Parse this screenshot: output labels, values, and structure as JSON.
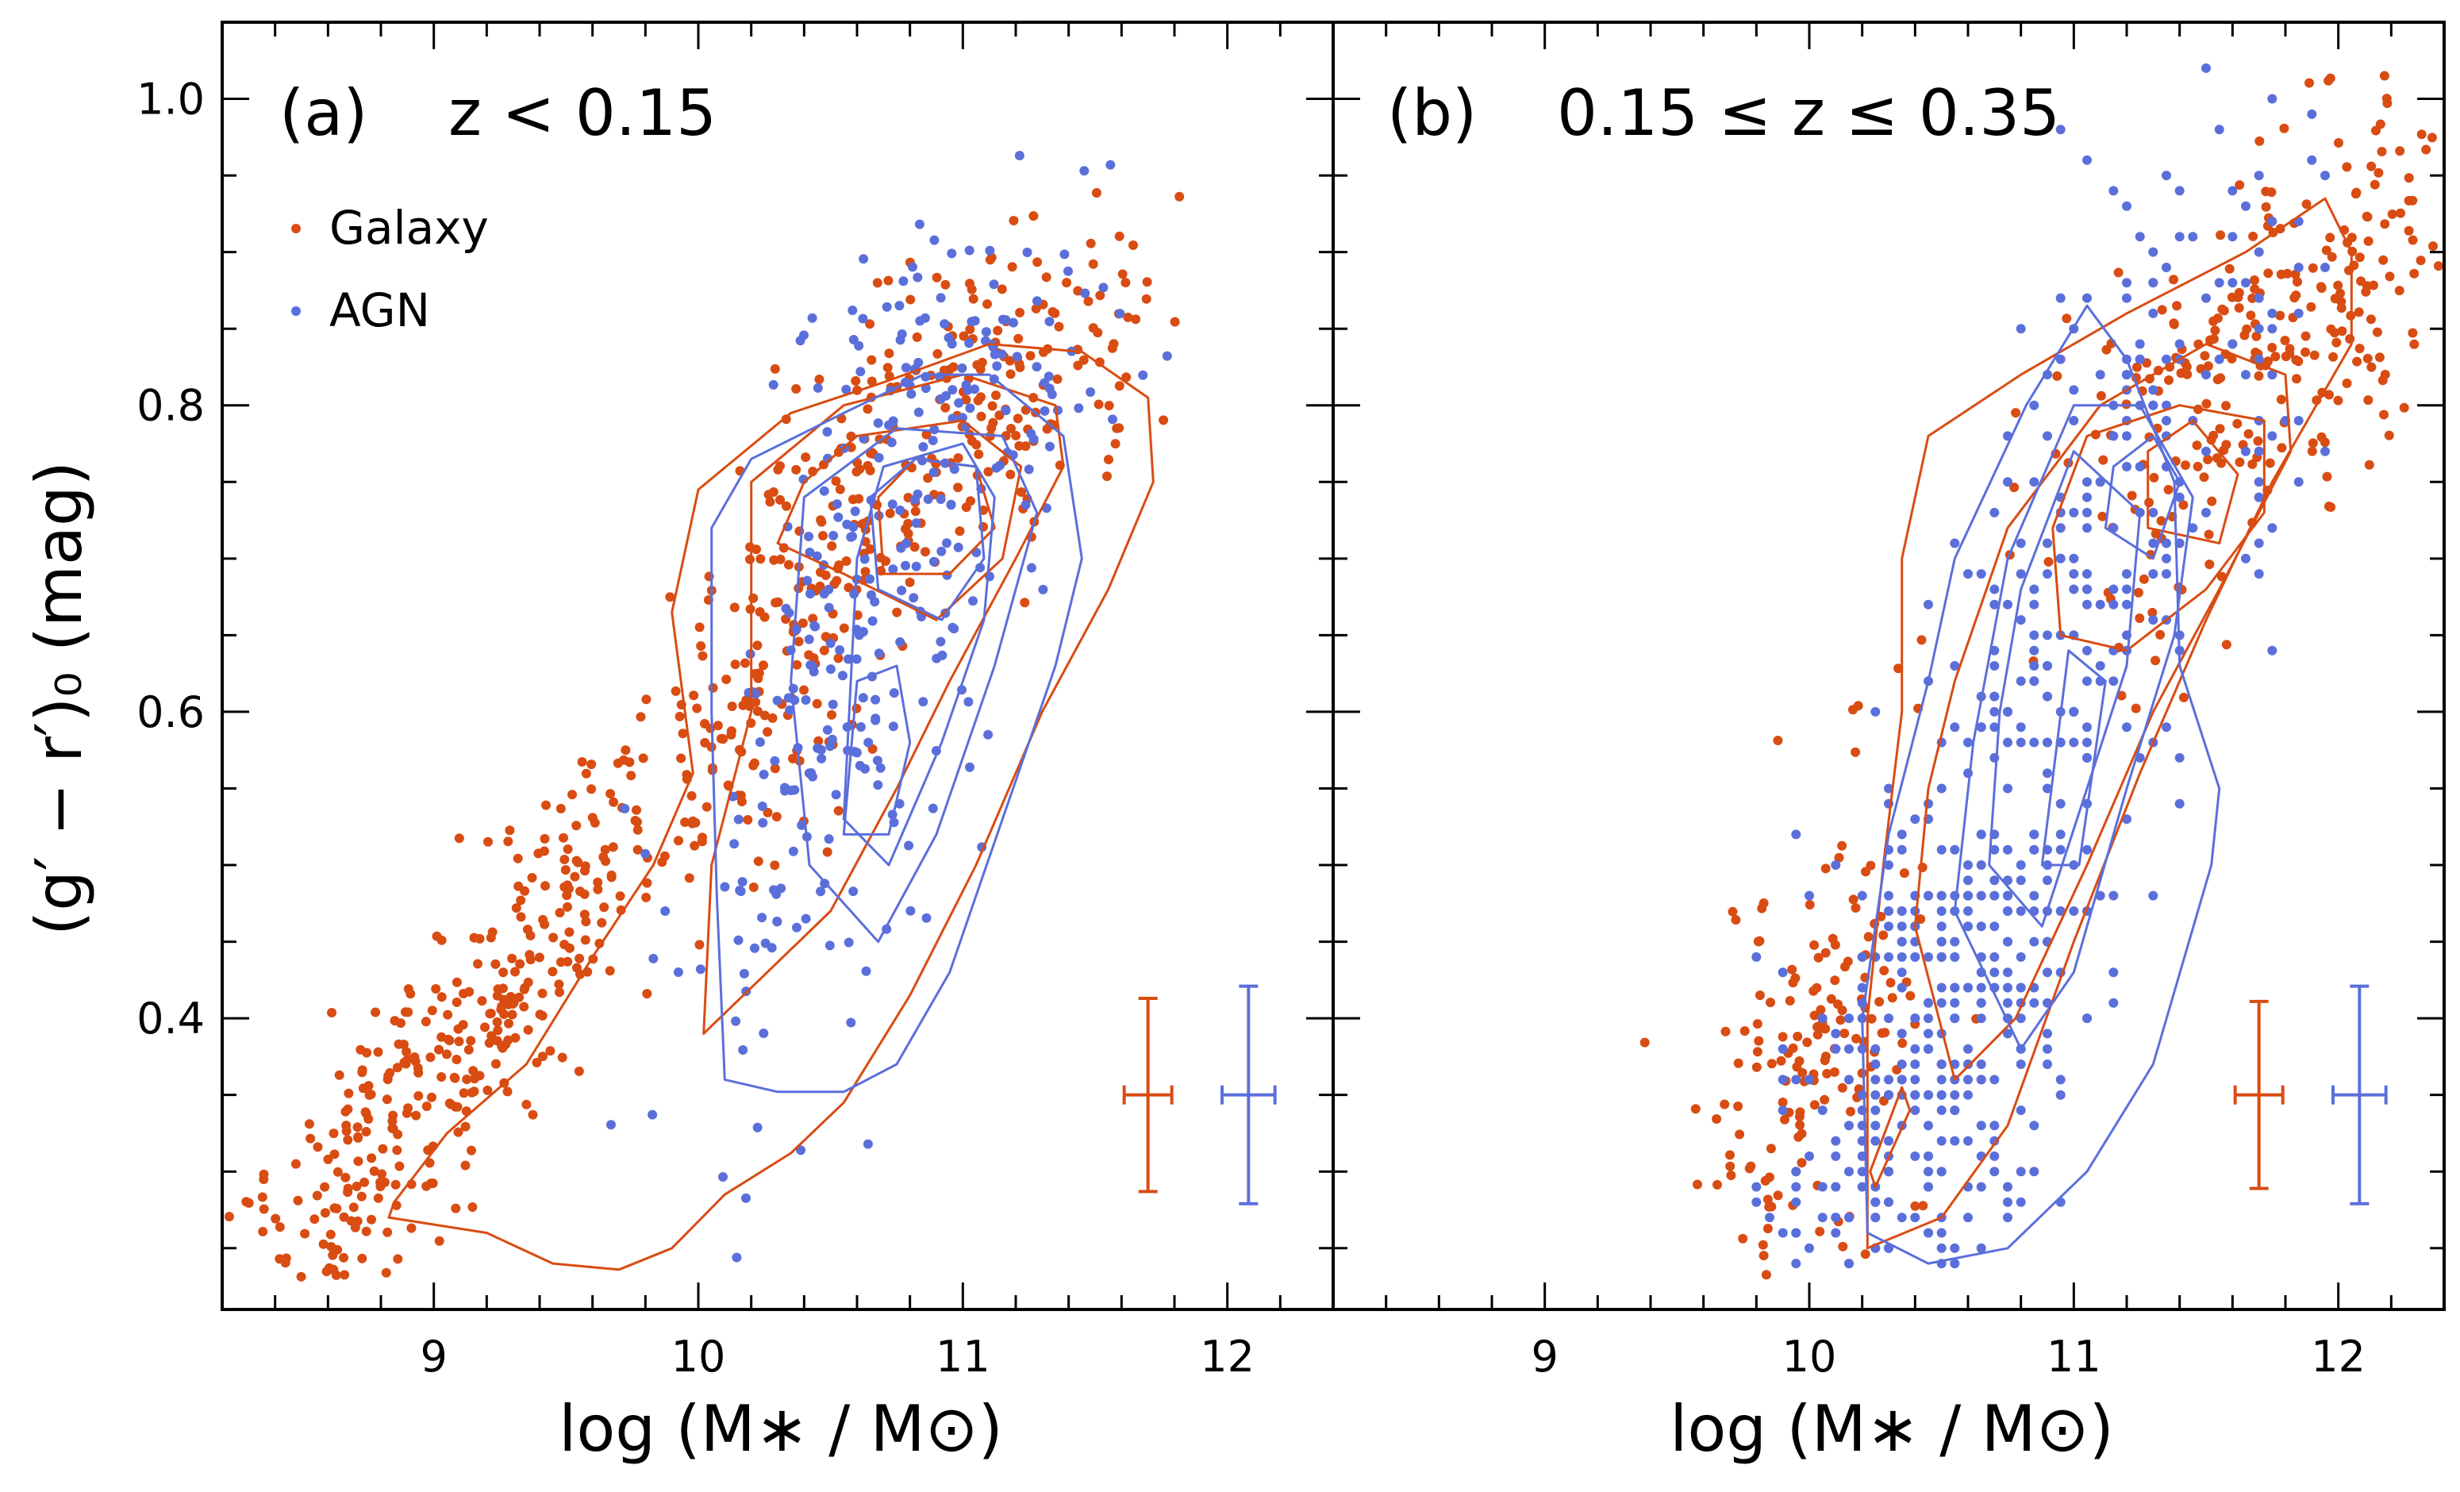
{
  "chart_data": [
    {
      "type": "scatter",
      "panel_label": "(a)",
      "title_math": "z < 0.15",
      "xlabel": "log (M∗ / M⊙)",
      "ylabel": "(g′ − r′)₀ (mag)",
      "xlim": [
        8.2,
        12.4
      ],
      "ylim": [
        0.21,
        1.05
      ],
      "xticks": [
        "9",
        "10",
        "11",
        "12"
      ],
      "yticks": [
        "0.4",
        "0.6",
        "0.8",
        "1.0"
      ],
      "legend": {
        "position": "top-left",
        "entries": [
          "Galaxy",
          "AGN"
        ]
      },
      "colors": {
        "galaxy": "#d94c12",
        "agn": "#5b6fdb"
      },
      "error_bars": [
        {
          "series": "Galaxy",
          "x": 11.7,
          "y": 0.35,
          "xerr": 0.09,
          "yerr": 0.063
        },
        {
          "series": "AGN",
          "x": 12.08,
          "y": 0.35,
          "xerr": 0.1,
          "yerr": 0.071
        }
      ],
      "contours": {
        "galaxy": [
          [
            [
              9.7,
              0.236
            ],
            [
              9.9,
              0.25
            ],
            [
              10.1,
              0.285
            ],
            [
              10.35,
              0.312
            ],
            [
              10.55,
              0.345
            ],
            [
              10.8,
              0.415
            ],
            [
              11.05,
              0.5
            ],
            [
              11.3,
              0.6
            ],
            [
              11.55,
              0.68
            ],
            [
              11.72,
              0.75
            ],
            [
              11.7,
              0.805
            ],
            [
              11.45,
              0.835
            ],
            [
              11.1,
              0.84
            ],
            [
              10.7,
              0.815
            ],
            [
              10.35,
              0.795
            ],
            [
              10.0,
              0.745
            ],
            [
              9.9,
              0.665
            ],
            [
              9.98,
              0.56
            ],
            [
              9.83,
              0.5
            ],
            [
              9.6,
              0.44
            ],
            [
              9.35,
              0.37
            ],
            [
              9.05,
              0.325
            ],
            [
              8.85,
              0.28
            ],
            [
              8.83,
              0.27
            ],
            [
              9.2,
              0.26
            ],
            [
              9.45,
              0.24
            ],
            [
              9.7,
              0.236
            ]
          ],
          [
            [
              10.02,
              0.39
            ],
            [
              10.5,
              0.47
            ],
            [
              10.75,
              0.55
            ],
            [
              10.95,
              0.62
            ],
            [
              11.2,
              0.7
            ],
            [
              11.38,
              0.76
            ],
            [
              11.35,
              0.8
            ],
            [
              11.0,
              0.82
            ],
            [
              10.55,
              0.8
            ],
            [
              10.2,
              0.75
            ],
            [
              10.2,
              0.6
            ],
            [
              10.05,
              0.5
            ],
            [
              10.02,
              0.39
            ]
          ],
          [
            [
              10.3,
              0.71
            ],
            [
              10.55,
              0.69
            ],
            [
              10.9,
              0.66
            ],
            [
              11.15,
              0.7
            ],
            [
              11.22,
              0.76
            ],
            [
              11.0,
              0.79
            ],
            [
              10.6,
              0.78
            ],
            [
              10.4,
              0.75
            ],
            [
              10.3,
              0.71
            ]
          ],
          [
            [
              10.7,
              0.69
            ],
            [
              10.95,
              0.69
            ],
            [
              11.12,
              0.72
            ],
            [
              11.05,
              0.76
            ],
            [
              10.82,
              0.765
            ],
            [
              10.68,
              0.74
            ],
            [
              10.7,
              0.69
            ]
          ]
        ],
        "agn": [
          [
            [
              10.1,
              0.36
            ],
            [
              10.3,
              0.352
            ],
            [
              10.55,
              0.352
            ],
            [
              10.75,
              0.37
            ],
            [
              10.95,
              0.43
            ],
            [
              11.15,
              0.53
            ],
            [
              11.35,
              0.63
            ],
            [
              11.45,
              0.7
            ],
            [
              11.38,
              0.78
            ],
            [
              11.1,
              0.82
            ],
            [
              10.85,
              0.82
            ],
            [
              10.55,
              0.795
            ],
            [
              10.2,
              0.765
            ],
            [
              10.05,
              0.72
            ],
            [
              10.05,
              0.6
            ],
            [
              10.07,
              0.48
            ],
            [
              10.1,
              0.36
            ]
          ],
          [
            [
              10.42,
              0.5
            ],
            [
              10.68,
              0.45
            ],
            [
              10.9,
              0.52
            ],
            [
              11.12,
              0.63
            ],
            [
              11.28,
              0.73
            ],
            [
              11.15,
              0.78
            ],
            [
              10.75,
              0.785
            ],
            [
              10.4,
              0.74
            ],
            [
              10.35,
              0.62
            ],
            [
              10.42,
              0.5
            ]
          ],
          [
            [
              10.55,
              0.53
            ],
            [
              10.72,
              0.5
            ],
            [
              10.92,
              0.58
            ],
            [
              11.08,
              0.66
            ],
            [
              11.12,
              0.74
            ],
            [
              11.0,
              0.775
            ],
            [
              10.7,
              0.76
            ],
            [
              10.6,
              0.7
            ],
            [
              10.55,
              0.53
            ]
          ],
          [
            [
              10.55,
              0.52
            ],
            [
              10.72,
              0.52
            ],
            [
              10.8,
              0.58
            ],
            [
              10.75,
              0.63
            ],
            [
              10.6,
              0.62
            ],
            [
              10.55,
              0.52
            ]
          ],
          [
            [
              10.68,
              0.68
            ],
            [
              10.92,
              0.66
            ],
            [
              11.08,
              0.7
            ],
            [
              11.05,
              0.76
            ],
            [
              10.82,
              0.765
            ],
            [
              10.65,
              0.74
            ],
            [
              10.68,
              0.68
            ]
          ]
        ]
      }
    },
    {
      "type": "scatter",
      "panel_label": "(b)",
      "title_math": "0.15 ≤ z ≤ 0.35",
      "xlabel": "log (M∗ / M⊙)",
      "xlim": [
        8.2,
        12.4
      ],
      "ylim": [
        0.21,
        1.05
      ],
      "xticks": [
        "9",
        "10",
        "11",
        "12"
      ],
      "colors": {
        "galaxy": "#d94c12",
        "agn": "#5b6fdb"
      },
      "error_bars": [
        {
          "series": "Galaxy",
          "x": 11.7,
          "y": 0.35,
          "xerr": 0.09,
          "yerr": 0.061
        },
        {
          "series": "AGN",
          "x": 12.08,
          "y": 0.35,
          "xerr": 0.1,
          "yerr": 0.071
        }
      ],
      "contours": {
        "galaxy": [
          [
            [
              10.22,
              0.25
            ],
            [
              10.5,
              0.27
            ],
            [
              10.75,
              0.33
            ],
            [
              11.0,
              0.45
            ],
            [
              11.25,
              0.56
            ],
            [
              11.5,
              0.66
            ],
            [
              11.75,
              0.75
            ],
            [
              12.05,
              0.84
            ],
            [
              12.05,
              0.9
            ],
            [
              11.95,
              0.935
            ],
            [
              11.65,
              0.9
            ],
            [
              11.2,
              0.86
            ],
            [
              10.8,
              0.82
            ],
            [
              10.45,
              0.78
            ],
            [
              10.35,
              0.7
            ],
            [
              10.35,
              0.6
            ],
            [
              10.28,
              0.5
            ],
            [
              10.22,
              0.4
            ],
            [
              10.22,
              0.25
            ]
          ],
          [
            [
              10.4,
              0.46
            ],
            [
              10.55,
              0.36
            ],
            [
              10.78,
              0.4
            ],
            [
              11.05,
              0.5
            ],
            [
              11.3,
              0.6
            ],
            [
              11.55,
              0.68
            ],
            [
              11.82,
              0.77
            ],
            [
              11.8,
              0.82
            ],
            [
              11.5,
              0.84
            ],
            [
              11.1,
              0.8
            ],
            [
              10.75,
              0.72
            ],
            [
              10.55,
              0.62
            ],
            [
              10.45,
              0.55
            ],
            [
              10.4,
              0.46
            ]
          ],
          [
            [
              10.95,
              0.65
            ],
            [
              11.2,
              0.64
            ],
            [
              11.5,
              0.68
            ],
            [
              11.72,
              0.73
            ],
            [
              11.72,
              0.79
            ],
            [
              11.4,
              0.8
            ],
            [
              11.05,
              0.78
            ],
            [
              10.92,
              0.72
            ],
            [
              10.95,
              0.65
            ]
          ],
          [
            [
              11.28,
              0.72
            ],
            [
              11.55,
              0.71
            ],
            [
              11.62,
              0.755
            ],
            [
              11.45,
              0.79
            ],
            [
              11.28,
              0.77
            ],
            [
              11.28,
              0.72
            ]
          ],
          [
            [
              10.23,
              0.3
            ],
            [
              10.35,
              0.355
            ],
            [
              10.38,
              0.34
            ],
            [
              10.25,
              0.29
            ],
            [
              10.23,
              0.3
            ]
          ]
        ],
        "agn": [
          [
            [
              10.22,
              0.26
            ],
            [
              10.45,
              0.24
            ],
            [
              10.75,
              0.25
            ],
            [
              11.05,
              0.3
            ],
            [
              11.3,
              0.37
            ],
            [
              11.52,
              0.5
            ],
            [
              11.55,
              0.55
            ],
            [
              11.4,
              0.63
            ],
            [
              11.38,
              0.75
            ],
            [
              11.2,
              0.83
            ],
            [
              11.05,
              0.865
            ],
            [
              10.82,
              0.8
            ],
            [
              10.55,
              0.7
            ],
            [
              10.45,
              0.62
            ],
            [
              10.3,
              0.52
            ],
            [
              10.2,
              0.4
            ],
            [
              10.22,
              0.26
            ]
          ],
          [
            [
              10.55,
              0.47
            ],
            [
              10.8,
              0.38
            ],
            [
              11.0,
              0.43
            ],
            [
              11.2,
              0.55
            ],
            [
              11.38,
              0.65
            ],
            [
              11.45,
              0.74
            ],
            [
              11.25,
              0.8
            ],
            [
              11.0,
              0.8
            ],
            [
              10.75,
              0.7
            ],
            [
              10.62,
              0.58
            ],
            [
              10.55,
              0.47
            ]
          ],
          [
            [
              10.68,
              0.5
            ],
            [
              10.88,
              0.46
            ],
            [
              11.05,
              0.55
            ],
            [
              11.2,
              0.63
            ],
            [
              11.25,
              0.73
            ],
            [
              11.0,
              0.77
            ],
            [
              10.8,
              0.68
            ],
            [
              10.72,
              0.6
            ],
            [
              10.68,
              0.5
            ]
          ],
          [
            [
              10.88,
              0.5
            ],
            [
              11.02,
              0.5
            ],
            [
              11.12,
              0.62
            ],
            [
              10.98,
              0.64
            ],
            [
              10.88,
              0.5
            ]
          ],
          [
            [
              11.12,
              0.72
            ],
            [
              11.3,
              0.7
            ],
            [
              11.4,
              0.75
            ],
            [
              11.3,
              0.78
            ],
            [
              11.15,
              0.76
            ],
            [
              11.12,
              0.72
            ]
          ]
        ]
      }
    }
  ]
}
